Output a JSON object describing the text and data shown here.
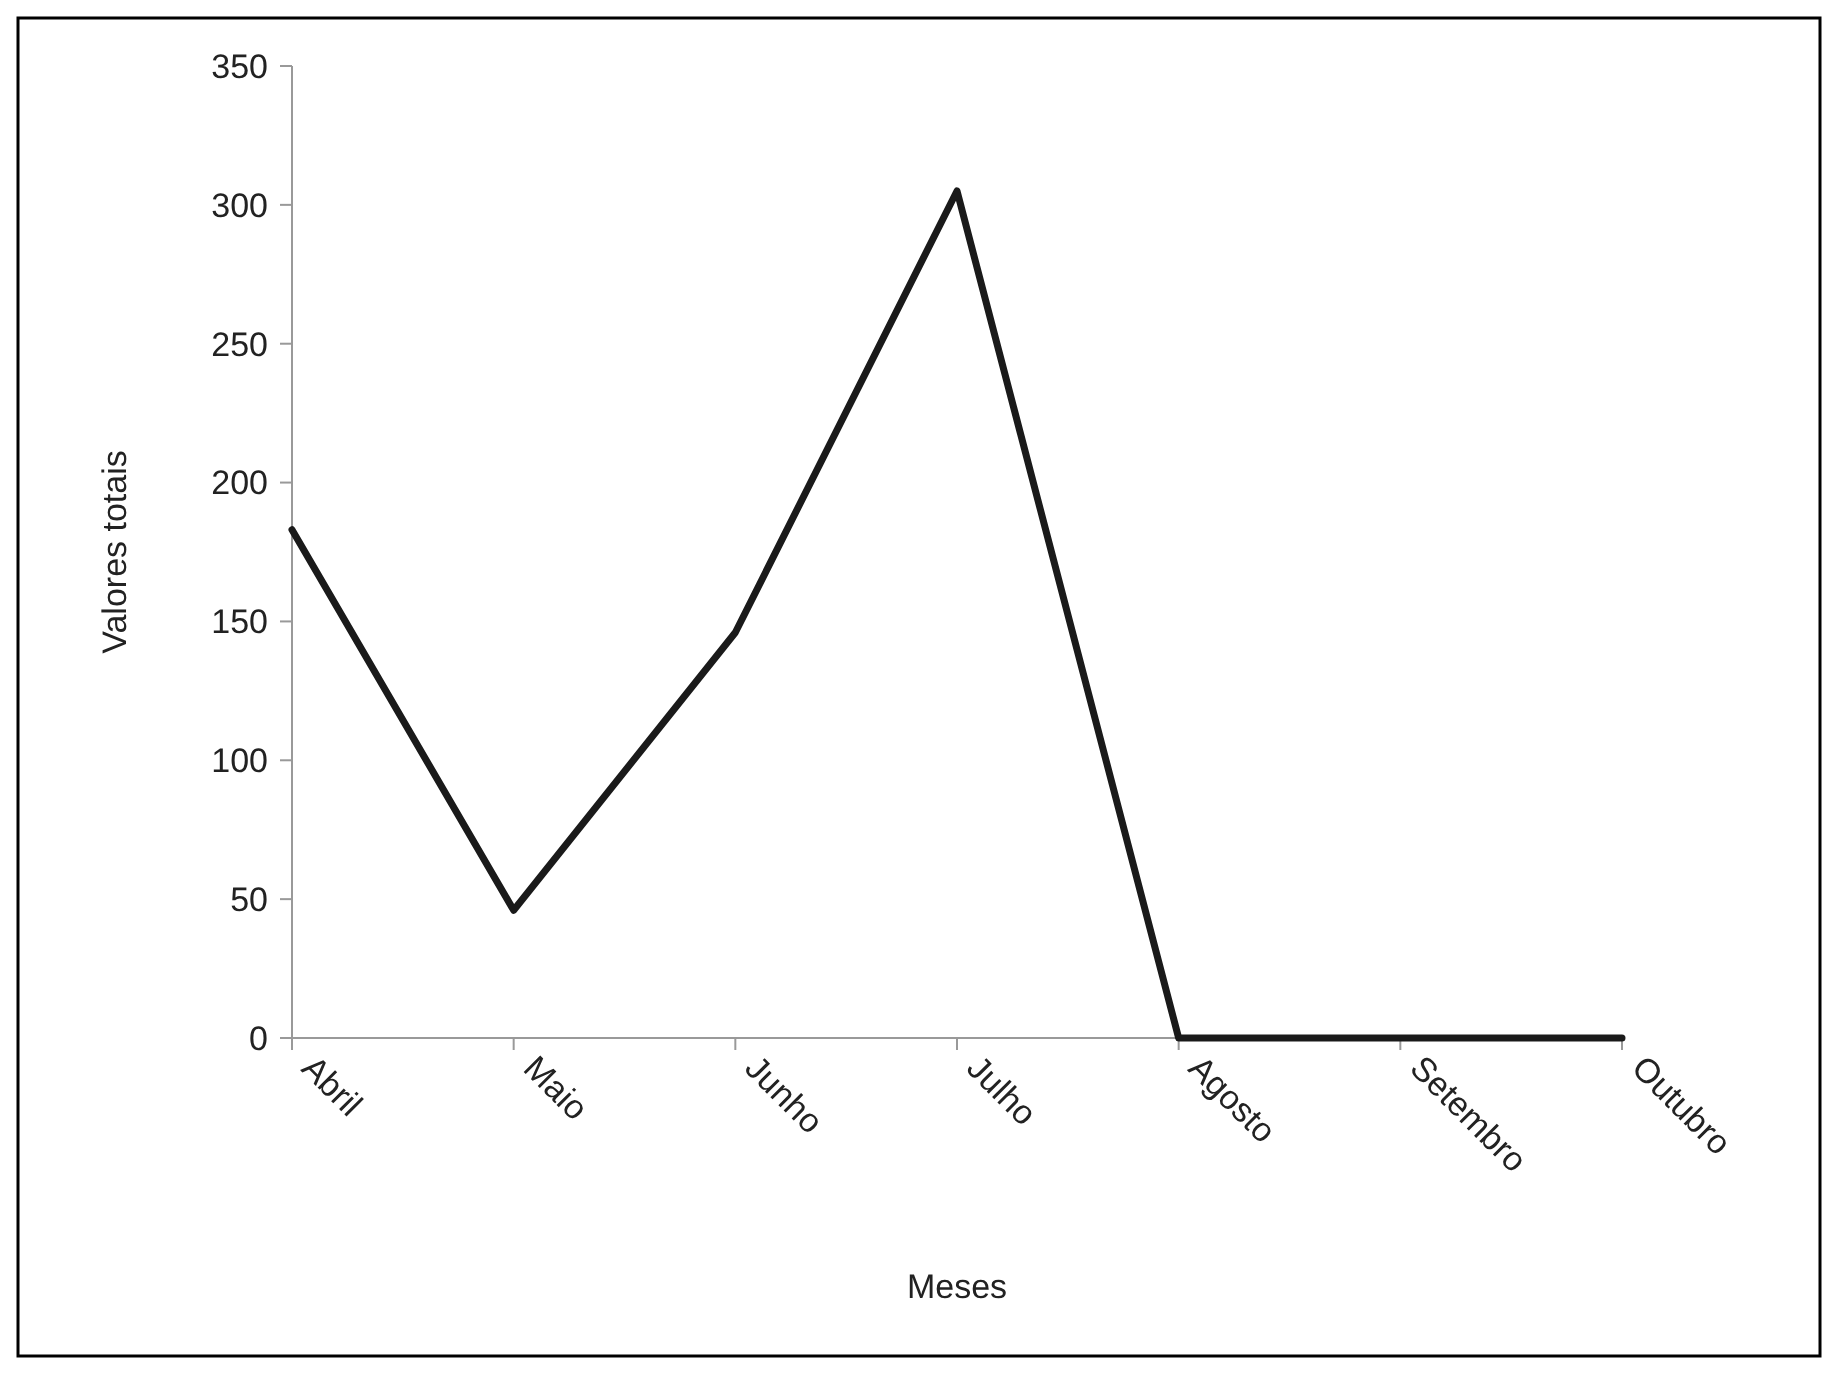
{
  "chart_data": {
    "type": "line",
    "xlabel": "Meses",
    "ylabel": "Valores totais",
    "categories": [
      "Abril",
      "Maio",
      "Junho",
      "Julho",
      "Agosto",
      "Setembro",
      "Outubro"
    ],
    "series": [
      {
        "color": "#1a1a1a",
        "values": [
          183,
          46,
          146,
          305,
          0,
          0,
          0
        ]
      }
    ],
    "ylim": [
      0,
      350
    ],
    "yticks": [
      0,
      50,
      100,
      150,
      200,
      250,
      300,
      350
    ],
    "grid": false,
    "marker": "none",
    "line_style": "solid"
  }
}
